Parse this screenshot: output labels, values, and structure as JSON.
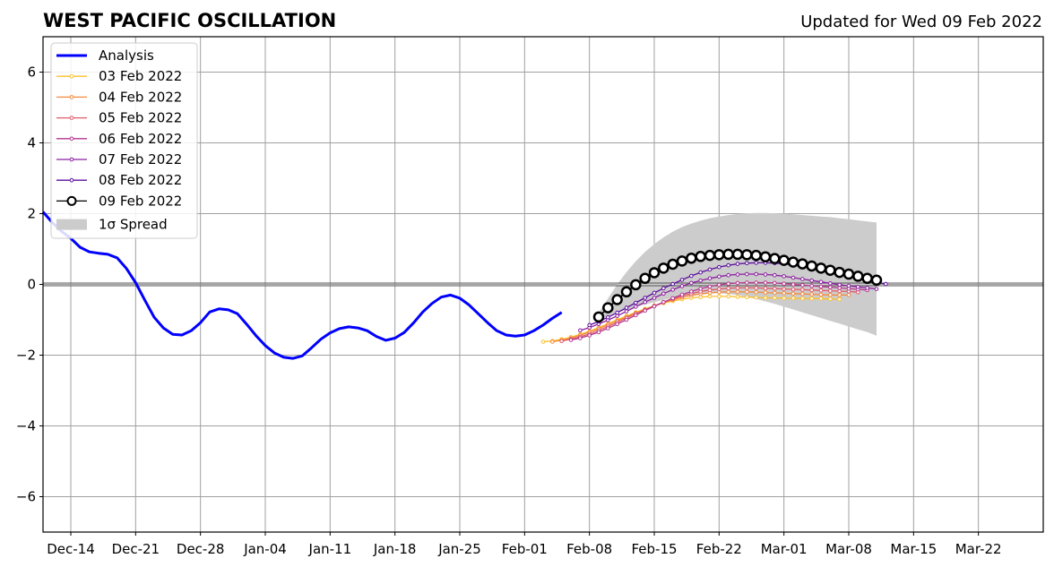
{
  "chart_data": {
    "type": "line",
    "title": "WEST PACIFIC OSCILLATION",
    "subtitle": "Updated for Wed 09 Feb 2022",
    "ylim": [
      -7,
      7
    ],
    "yticks": [
      -6,
      -4,
      -2,
      0,
      2,
      4,
      6
    ],
    "ytick_labels": [
      "−6",
      "−4",
      "−2",
      "0",
      "2",
      "4",
      "6"
    ],
    "xlim": [
      "2021-12-11",
      "2022-03-29"
    ],
    "xtick_labels": [
      "Dec-14",
      "Dec-21",
      "Dec-28",
      "Jan-04",
      "Jan-11",
      "Jan-18",
      "Jan-25",
      "Feb-01",
      "Feb-08",
      "Feb-15",
      "Feb-22",
      "Mar-01",
      "Mar-08",
      "Mar-15",
      "Mar-22"
    ],
    "grid": true,
    "zero_line": true,
    "legend_position": "upper-left",
    "analysis": {
      "name": "Analysis",
      "color": "#0000ff",
      "start": "2021-12-11",
      "values": [
        2.05,
        1.75,
        1.5,
        1.3,
        1.05,
        0.92,
        0.88,
        0.85,
        0.75,
        0.45,
        0.05,
        -0.45,
        -0.93,
        -1.23,
        -1.41,
        -1.43,
        -1.31,
        -1.08,
        -0.78,
        -0.69,
        -0.72,
        -0.83,
        -1.13,
        -1.45,
        -1.73,
        -1.94,
        -2.06,
        -2.09,
        -2.02,
        -1.79,
        -1.55,
        -1.37,
        -1.25,
        -1.2,
        -1.23,
        -1.31,
        -1.47,
        -1.58,
        -1.52,
        -1.36,
        -1.09,
        -0.78,
        -0.54,
        -0.36,
        -0.3,
        -0.39,
        -0.58,
        -0.83,
        -1.08,
        -1.31,
        -1.43,
        -1.46,
        -1.43,
        -1.31,
        -1.15,
        -0.96,
        -0.79
      ]
    },
    "forecasts": [
      {
        "name": "03 Feb 2022",
        "color": "#fbc02d",
        "start": "2022-02-03",
        "values": [
          -1.62,
          -1.6,
          -1.55,
          -1.49,
          -1.41,
          -1.32,
          -1.22,
          -1.11,
          -1.0,
          -0.89,
          -0.79,
          -0.69,
          -0.6,
          -0.53,
          -0.47,
          -0.42,
          -0.38,
          -0.36,
          -0.34,
          -0.34,
          -0.34,
          -0.35,
          -0.36,
          -0.37,
          -0.38,
          -0.38,
          -0.39,
          -0.39,
          -0.4,
          -0.4,
          -0.4,
          -0.41,
          -0.42
        ]
      },
      {
        "name": "04 Feb 2022",
        "color": "#f4893c",
        "start": "2022-02-04",
        "values": [
          -1.62,
          -1.58,
          -1.52,
          -1.44,
          -1.35,
          -1.25,
          -1.14,
          -1.03,
          -0.92,
          -0.81,
          -0.71,
          -0.61,
          -0.52,
          -0.44,
          -0.37,
          -0.31,
          -0.27,
          -0.24,
          -0.22,
          -0.21,
          -0.21,
          -0.21,
          -0.22,
          -0.23,
          -0.24,
          -0.25,
          -0.26,
          -0.27,
          -0.28,
          -0.29,
          -0.3,
          -0.3,
          -0.3
        ]
      },
      {
        "name": "05 Feb 2022",
        "color": "#e15a6a",
        "start": "2022-02-05",
        "values": [
          -1.6,
          -1.55,
          -1.48,
          -1.4,
          -1.3,
          -1.19,
          -1.07,
          -0.95,
          -0.83,
          -0.72,
          -0.61,
          -0.5,
          -0.41,
          -0.33,
          -0.26,
          -0.2,
          -0.16,
          -0.13,
          -0.11,
          -0.1,
          -0.1,
          -0.1,
          -0.11,
          -0.12,
          -0.13,
          -0.14,
          -0.15,
          -0.16,
          -0.17,
          -0.18,
          -0.19,
          -0.2,
          -0.22
        ]
      },
      {
        "name": "06 Feb 2022",
        "color": "#b5378f",
        "start": "2022-02-06",
        "values": [
          -1.57,
          -1.52,
          -1.44,
          -1.35,
          -1.24,
          -1.12,
          -1.0,
          -0.87,
          -0.74,
          -0.62,
          -0.5,
          -0.39,
          -0.29,
          -0.2,
          -0.12,
          -0.06,
          -0.01,
          0.02,
          0.04,
          0.05,
          0.05,
          0.05,
          0.04,
          0.02,
          0.0,
          -0.02,
          -0.04,
          -0.06,
          -0.08,
          -0.1,
          -0.12,
          -0.14,
          -0.16
        ]
      },
      {
        "name": "07 Feb 2022",
        "color": "#8b1ea0",
        "start": "2022-02-07",
        "values": [
          -1.3,
          -1.22,
          -1.12,
          -1.01,
          -0.89,
          -0.76,
          -0.63,
          -0.5,
          -0.38,
          -0.26,
          -0.15,
          -0.05,
          0.04,
          0.11,
          0.17,
          0.22,
          0.26,
          0.28,
          0.29,
          0.29,
          0.28,
          0.26,
          0.23,
          0.19,
          0.15,
          0.11,
          0.07,
          0.03,
          -0.01,
          -0.04,
          -0.07,
          -0.1,
          -0.13
        ]
      },
      {
        "name": "08 Feb 2022",
        "color": "#5b0e9c",
        "start": "2022-02-08",
        "values": [
          -1.15,
          -1.05,
          -0.93,
          -0.8,
          -0.66,
          -0.52,
          -0.38,
          -0.24,
          -0.11,
          0.01,
          0.13,
          0.24,
          0.34,
          0.42,
          0.49,
          0.54,
          0.58,
          0.6,
          0.61,
          0.61,
          0.6,
          0.58,
          0.55,
          0.51,
          0.46,
          0.41,
          0.35,
          0.3,
          0.24,
          0.18,
          0.12,
          0.06,
          0.01
        ]
      },
      {
        "name": "09 Feb 2022",
        "color": "#000000",
        "start": "2022-02-09",
        "hollow_markers": true,
        "values": [
          -0.92,
          -0.66,
          -0.43,
          -0.21,
          -0.01,
          0.17,
          0.33,
          0.46,
          0.57,
          0.66,
          0.74,
          0.79,
          0.82,
          0.84,
          0.85,
          0.85,
          0.84,
          0.82,
          0.78,
          0.73,
          0.68,
          0.63,
          0.58,
          0.52,
          0.46,
          0.4,
          0.34,
          0.29,
          0.23,
          0.17,
          0.12
        ]
      }
    ],
    "spread": {
      "name": "1σ Spread",
      "color": "#cccccc",
      "start": "2022-02-09",
      "upper": [
        -0.8,
        -0.4,
        0.0,
        0.35,
        0.65,
        0.92,
        1.14,
        1.33,
        1.49,
        1.62,
        1.72,
        1.8,
        1.87,
        1.92,
        1.96,
        1.99,
        2.01,
        2.02,
        2.02,
        2.01,
        2.0,
        1.98,
        1.96,
        1.94,
        1.92,
        1.9,
        1.87,
        1.84,
        1.81,
        1.78,
        1.75
      ],
      "lower": [
        -1.0,
        -0.9,
        -0.8,
        -0.72,
        -0.64,
        -0.57,
        -0.5,
        -0.44,
        -0.38,
        -0.33,
        -0.29,
        -0.26,
        -0.25,
        -0.25,
        -0.27,
        -0.3,
        -0.35,
        -0.41,
        -0.48,
        -0.55,
        -0.63,
        -0.71,
        -0.79,
        -0.87,
        -0.95,
        -1.03,
        -1.11,
        -1.19,
        -1.27,
        -1.35,
        -1.45
      ]
    }
  }
}
